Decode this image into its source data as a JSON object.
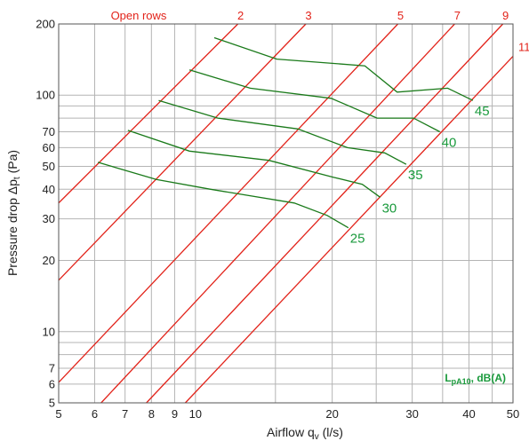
{
  "chart_data": {
    "type": "line",
    "xlabel": "Airflow q",
    "xlabel_sub": "v",
    "xlabel_unit": " (l/s)",
    "ylabel": "Pressure drop Δp",
    "ylabel_sub": "t",
    "ylabel_unit": " (Pa)",
    "x_scale": "log",
    "y_scale": "log",
    "xlim": [
      5,
      50
    ],
    "ylim": [
      5,
      200
    ],
    "x_ticks": [
      5,
      6,
      7,
      8,
      9,
      10,
      20,
      30,
      40,
      50
    ],
    "x_tick_labels": [
      "5",
      "6",
      "7",
      "8",
      "9",
      "10",
      "20",
      "30",
      "40",
      "50"
    ],
    "x_minor": [
      15,
      25,
      35,
      45
    ],
    "y_ticks": [
      5,
      6,
      7,
      10,
      20,
      30,
      40,
      50,
      60,
      70,
      100,
      200
    ],
    "y_tick_labels": [
      "5",
      "6",
      "7",
      "10",
      "20",
      "30",
      "40",
      "50",
      "60",
      "70",
      "100",
      "200"
    ],
    "y_minor": [
      8,
      9,
      80,
      90
    ],
    "grid": true,
    "open_rows_title": "Open rows",
    "open_rows": [
      {
        "label": "2",
        "points": [
          [
            5,
            35
          ],
          [
            12.4,
            200
          ]
        ]
      },
      {
        "label": "3",
        "points": [
          [
            5,
            16.5
          ],
          [
            17.5,
            200
          ]
        ]
      },
      {
        "label": "5",
        "points": [
          [
            5,
            6.1
          ],
          [
            27.9,
            200
          ]
        ]
      },
      {
        "label": "7",
        "points": [
          [
            6.2,
            5
          ],
          [
            37.2,
            200
          ]
        ]
      },
      {
        "label": "9",
        "points": [
          [
            7.8,
            5
          ],
          [
            47.5,
            200
          ]
        ]
      },
      {
        "label": "11",
        "points": [
          [
            9.5,
            5
          ],
          [
            50,
            146
          ]
        ]
      }
    ],
    "sound_levels_label": "L",
    "sound_levels_label_sub": "pA10",
    "sound_levels_label_rest": ", dB(A)",
    "sound_level_series": [
      {
        "name": "25",
        "points": [
          [
            6.1,
            52
          ],
          [
            8.2,
            44
          ],
          [
            10.8,
            40
          ],
          [
            16.5,
            35
          ],
          [
            19.5,
            31
          ],
          [
            21.7,
            27.5
          ]
        ]
      },
      {
        "name": "30",
        "points": [
          [
            7.1,
            71
          ],
          [
            9.7,
            58
          ],
          [
            14.5,
            53
          ],
          [
            20.1,
            45
          ],
          [
            23.3,
            42
          ],
          [
            25.5,
            37
          ]
        ]
      },
      {
        "name": "35",
        "points": [
          [
            8.3,
            95
          ],
          [
            11.2,
            80
          ],
          [
            16.8,
            72
          ],
          [
            21.6,
            60
          ],
          [
            26.1,
            57
          ],
          [
            29.1,
            51
          ]
        ]
      },
      {
        "name": "40",
        "points": [
          [
            9.7,
            128
          ],
          [
            13.2,
            107
          ],
          [
            19.9,
            97
          ],
          [
            25.1,
            80
          ],
          [
            30.2,
            80
          ],
          [
            34.5,
            70
          ]
        ]
      },
      {
        "name": "45",
        "points": [
          [
            11.0,
            175
          ],
          [
            15.1,
            142
          ],
          [
            23.6,
            133
          ],
          [
            27.8,
            103
          ],
          [
            35.9,
            107
          ],
          [
            40.8,
            95
          ]
        ]
      }
    ],
    "colors": {
      "open_rows": "#e2231a",
      "sound_levels": "#1a7a1a",
      "sound_labels": "#1a9a3c",
      "grid": "#b4b4b4",
      "frame": "#555555"
    }
  }
}
